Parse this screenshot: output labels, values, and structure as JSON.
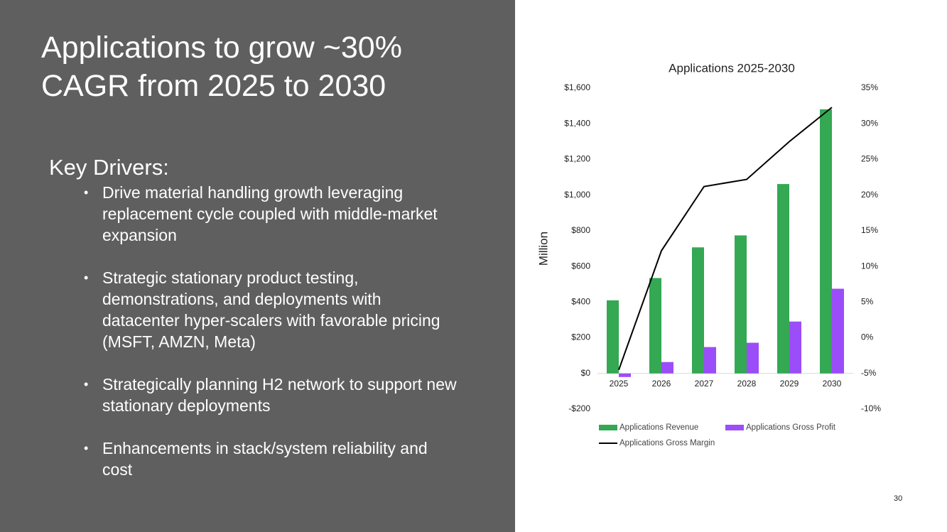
{
  "slide": {
    "title": "Applications to grow ~30% CAGR from 2025 to 2030",
    "heading": "Key Drivers:",
    "bullets": [
      "Drive material handling growth leveraging replacement cycle coupled with middle-market expansion",
      "Strategic stationary product testing, demonstrations, and deployments with datacenter hyper-scalers with favorable pricing (MSFT, AMZN, Meta)",
      "Strategically planning H2 network to support new stationary deployments",
      "Enhancements in stack/system reliability and cost"
    ],
    "page_number": "30"
  },
  "chart_data": {
    "type": "combo",
    "title": "Applications 2025-2030",
    "ylabel": "Million",
    "categories": [
      "2025",
      "2026",
      "2027",
      "2028",
      "2029",
      "2030"
    ],
    "series": [
      {
        "name": "Applications Revenue",
        "type": "bar",
        "color": "#34a853",
        "values": [
          410,
          535,
          707,
          774,
          1062,
          1481
        ]
      },
      {
        "name": "Applications Gross Profit",
        "type": "bar",
        "color": "#9b4dfa",
        "values": [
          -20,
          64,
          148,
          172,
          291,
          475
        ]
      },
      {
        "name": "Applications Gross Margin",
        "type": "line",
        "axis": "y2",
        "color": "#000000",
        "values": [
          -4.5,
          12.2,
          21.2,
          22.2,
          27.5,
          32.3
        ]
      }
    ],
    "ylim": [
      -200,
      1600
    ],
    "yticks": [
      {
        "value": -200,
        "label": "-$200"
      },
      {
        "value": 0,
        "label": "$0"
      },
      {
        "value": 200,
        "label": "$200"
      },
      {
        "value": 400,
        "label": "$400"
      },
      {
        "value": 600,
        "label": "$600"
      },
      {
        "value": 800,
        "label": "$800"
      },
      {
        "value": 1000,
        "label": "$1,000"
      },
      {
        "value": 1200,
        "label": "$1,200"
      },
      {
        "value": 1400,
        "label": "$1,400"
      },
      {
        "value": 1600,
        "label": "$1,600"
      }
    ],
    "y2lim": [
      -10,
      35
    ],
    "y2ticks": [
      {
        "value": -10,
        "label": "-10%"
      },
      {
        "value": -5,
        "label": "-5%"
      },
      {
        "value": 0,
        "label": "0%"
      },
      {
        "value": 5,
        "label": "5%"
      },
      {
        "value": 10,
        "label": "10%"
      },
      {
        "value": 15,
        "label": "15%"
      },
      {
        "value": 20,
        "label": "20%"
      },
      {
        "value": 25,
        "label": "25%"
      },
      {
        "value": 30,
        "label": "30%"
      },
      {
        "value": 35,
        "label": "35%"
      }
    ],
    "grid": false,
    "legend": "bottom"
  }
}
